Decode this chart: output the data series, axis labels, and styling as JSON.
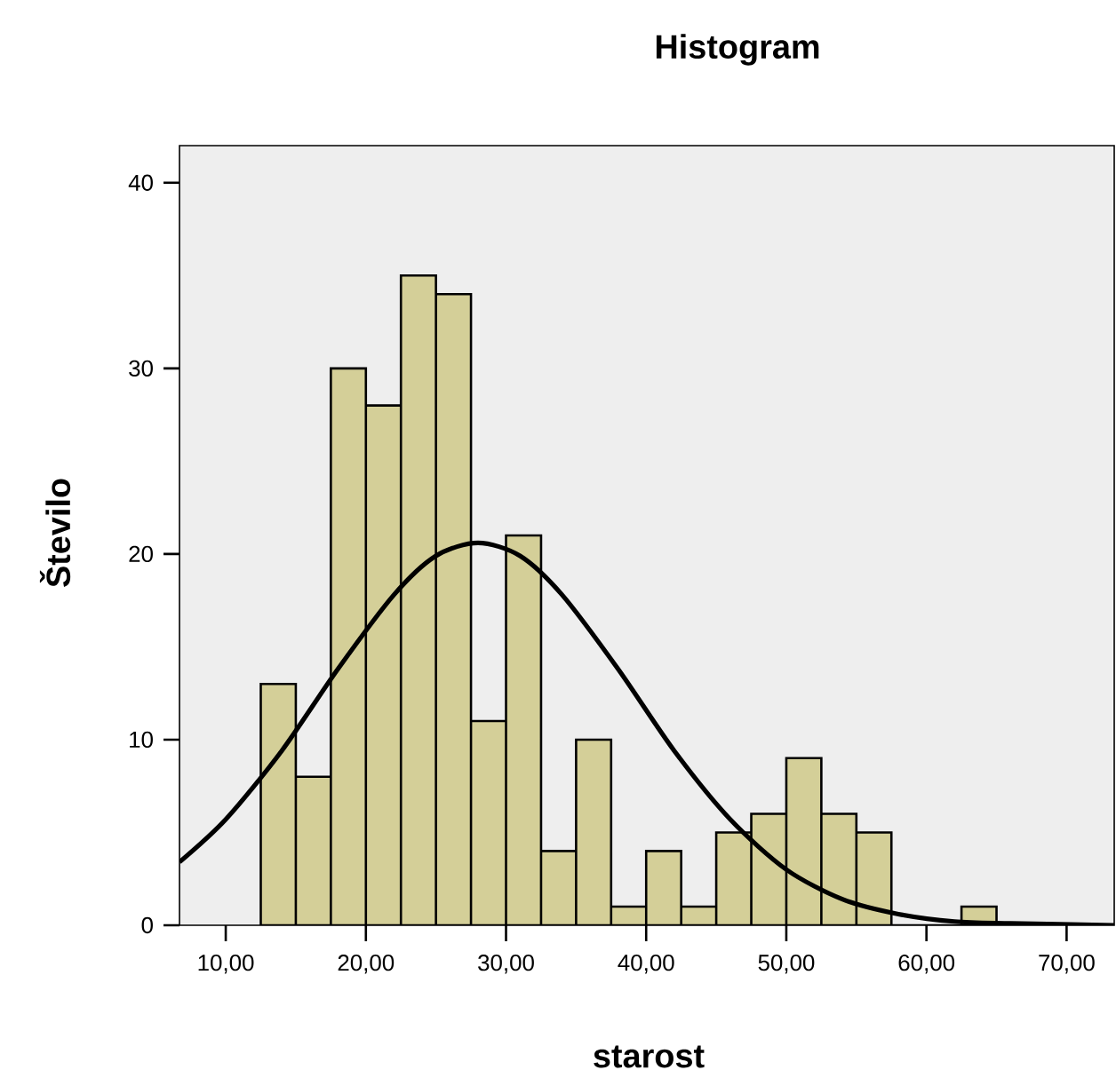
{
  "chart_data": {
    "type": "histogram",
    "title": "Histogram",
    "xlabel": "starost",
    "ylabel": "Število",
    "series": [
      {
        "color": "#d4cf98",
        "bins": [
          12.5,
          15,
          17.5,
          20,
          22.5,
          25,
          27.5,
          30,
          32.5,
          35,
          37.5,
          40,
          42.5,
          45,
          47.5,
          50,
          52.5,
          55,
          57.5,
          60,
          62.5,
          65
        ],
        "values": [
          13,
          8,
          30,
          28,
          35,
          34,
          11,
          21,
          4,
          10,
          1,
          4,
          1,
          5,
          6,
          9,
          6,
          5,
          0,
          0,
          1
        ]
      },
      {
        "type": "line",
        "color": "#000000",
        "x": [
          6.7,
          10,
          14,
          18,
          22,
          25,
          28,
          31,
          34,
          38,
          42,
          46,
          50,
          54,
          58,
          62,
          66,
          73.4
        ],
        "values": [
          3.4,
          5.7,
          9.4,
          13.8,
          17.8,
          19.9,
          20.6,
          19.9,
          17.8,
          13.8,
          9.4,
          5.7,
          3.0,
          1.4,
          0.6,
          0.2,
          0.1,
          0.0
        ]
      }
    ],
    "xlim": [
      6.7,
      73.4
    ],
    "ylim": [
      0,
      42
    ],
    "xticks": [
      {
        "value": 10,
        "label": "10,00"
      },
      {
        "value": 20,
        "label": "20,00"
      },
      {
        "value": 30,
        "label": "30,00"
      },
      {
        "value": 40,
        "label": "40,00"
      },
      {
        "value": 50,
        "label": "50,00"
      },
      {
        "value": 60,
        "label": "60,00"
      },
      {
        "value": 70,
        "label": "70,00"
      }
    ],
    "yticks": [
      0,
      10,
      20,
      30,
      40
    ],
    "grid": false
  }
}
